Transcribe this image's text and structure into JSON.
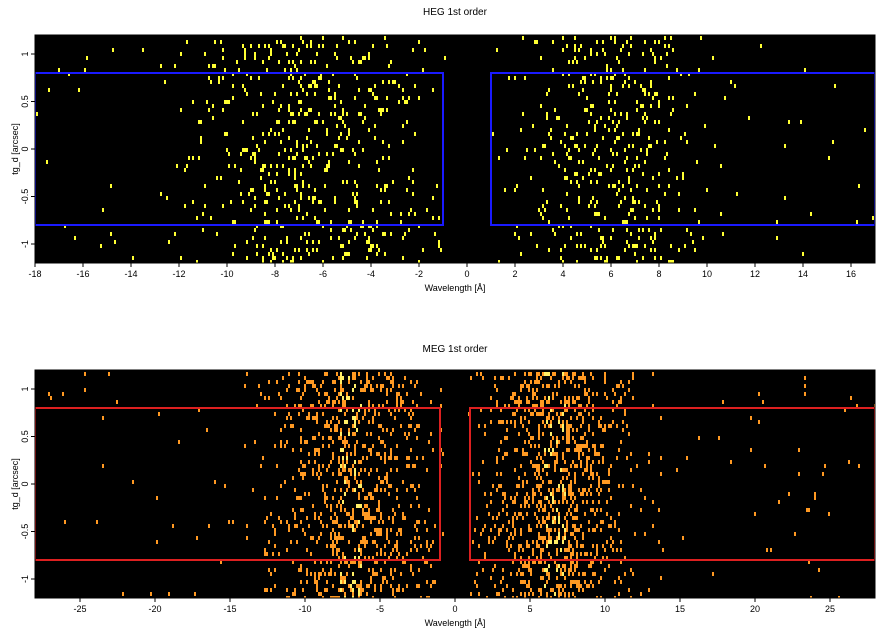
{
  "chart_data": [
    {
      "type": "heatmap",
      "title": "HEG 1st order",
      "xlabel": "Wavelength [Å]",
      "ylabel": "tg_d [arcsec]",
      "xlim": [
        -18,
        17
      ],
      "ylim": [
        -1.2,
        1.2
      ],
      "xticks": [
        -18,
        -16,
        -14,
        -12,
        -10,
        -8,
        -6,
        -4,
        -2,
        0,
        2,
        4,
        6,
        8,
        10,
        12,
        14,
        16
      ],
      "yticks": [
        -1,
        -0.5,
        0,
        0.5,
        1
      ],
      "background": "#000000",
      "event_color": "#ffff33",
      "region_color": "#1a1aff",
      "regions": [
        {
          "x": [
            -18,
            -1
          ],
          "y": [
            -0.8,
            0.8
          ]
        },
        {
          "x": [
            1,
            17
          ],
          "y": [
            -0.8,
            0.8
          ]
        }
      ],
      "event_clusters": [
        {
          "center": -6.5,
          "spread": 2.6,
          "count": 560
        },
        {
          "center": 5.8,
          "spread": 2.0,
          "count": 430
        }
      ],
      "sparse_events": 90
    },
    {
      "type": "heatmap",
      "title": "MEG 1st order",
      "xlabel": "Wavelength [Å]",
      "ylabel": "tg_d [arcsec]",
      "xlim": [
        -28,
        28
      ],
      "ylim": [
        -1.2,
        1.2
      ],
      "xticks": [
        -25,
        -20,
        -15,
        -10,
        -5,
        0,
        5,
        10,
        15,
        20,
        25
      ],
      "yticks": [
        -1,
        -0.5,
        0,
        0.5,
        1
      ],
      "background": "#000000",
      "event_color": "#ff9922",
      "peak_color": "#ffee66",
      "region_color": "#dd2020",
      "regions": [
        {
          "x": [
            -28,
            -1
          ],
          "y": [
            -0.8,
            0.8
          ]
        },
        {
          "x": [
            1,
            28
          ],
          "y": [
            -0.8,
            0.8
          ]
        }
      ],
      "event_clusters": [
        {
          "center": -7.0,
          "spread": 2.7,
          "count": 900
        },
        {
          "center": 6.6,
          "spread": 2.5,
          "count": 1000
        }
      ],
      "sparse_events": 150
    }
  ]
}
